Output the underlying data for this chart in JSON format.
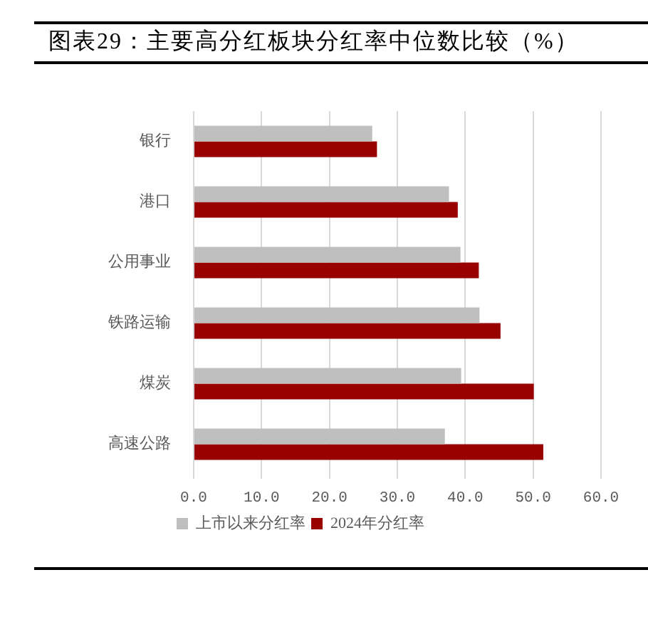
{
  "chart_data": {
    "type": "bar",
    "orientation": "horizontal",
    "title": "图表29：主要高分红板块分红率中位数比较（%）",
    "categories": [
      "银行",
      "港口",
      "公用事业",
      "铁路运输",
      "煤炭",
      "高速公路"
    ],
    "series": [
      {
        "name": "上市以来分红率",
        "color": "#bfbfbf",
        "values": [
          26.3,
          37.6,
          39.3,
          42.1,
          39.4,
          37.0
        ]
      },
      {
        "name": "2024年分红率",
        "color": "#990000",
        "values": [
          27.0,
          38.9,
          42.0,
          45.2,
          50.1,
          51.5
        ]
      }
    ],
    "xlim": [
      0,
      60
    ],
    "xticks": [
      {
        "value": 0,
        "label": "0.0"
      },
      {
        "value": 10,
        "label": "10.0"
      },
      {
        "value": 20,
        "label": "20.0"
      },
      {
        "value": 30,
        "label": "30.0"
      },
      {
        "value": 40,
        "label": "40.0"
      },
      {
        "value": 50,
        "label": "50.0"
      },
      {
        "value": 60,
        "label": "60.0"
      }
    ],
    "grid": "x",
    "legend": "bottom"
  }
}
